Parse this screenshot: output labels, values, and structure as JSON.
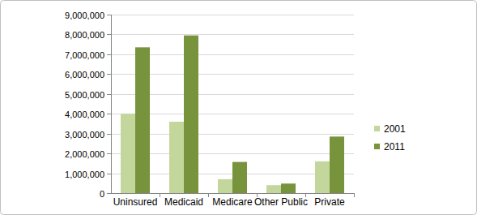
{
  "chart_data": {
    "type": "bar",
    "categories": [
      "Uninsured",
      "Medicaid",
      "Medicare",
      "Other Public",
      "Private"
    ],
    "series": [
      {
        "name": "2001",
        "color": "#c3d69b",
        "values": [
          4000000,
          3600000,
          700000,
          400000,
          1600000
        ]
      },
      {
        "name": "2011",
        "color": "#77933c",
        "values": [
          7350000,
          7950000,
          1570000,
          480000,
          2850000
        ]
      }
    ],
    "ylim": [
      0,
      9000000
    ],
    "yticks": [
      0,
      {
        "value": 1000000,
        "label": "1,000,000"
      },
      {
        "value": 2000000,
        "label": "2,000,000"
      },
      {
        "value": 3000000,
        "label": "3,000,000"
      },
      {
        "value": 4000000,
        "label": "4,000,000"
      },
      {
        "value": 5000000,
        "label": "5,000,000"
      },
      {
        "value": 6000000,
        "label": "6,000,000"
      },
      {
        "value": 7000000,
        "label": "7,000,000"
      },
      {
        "value": 8000000,
        "label": "8,000,000"
      },
      {
        "value": 9000000,
        "label": "9,000,000"
      }
    ],
    "grid": true,
    "legend": "right"
  }
}
